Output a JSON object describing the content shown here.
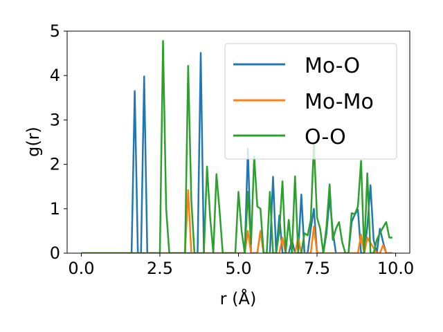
{
  "chart_data": {
    "type": "line",
    "xlabel": "r (Å)",
    "ylabel": "g(r)",
    "xlim": [
      -0.45,
      10.45
    ],
    "ylim": [
      0,
      5
    ],
    "xticks": [
      "0.0",
      "2.5",
      "5.0",
      "7.5",
      "10.0"
    ],
    "yticks": [
      "0",
      "1",
      "2",
      "3",
      "4",
      "5"
    ],
    "grid": false,
    "legend_position": "upper right",
    "series": [
      {
        "name": "Mo-O",
        "color": "#1f77b4",
        "x": [
          0.0,
          1.6,
          1.7,
          1.8,
          1.9,
          2.0,
          2.1,
          2.2,
          3.5,
          3.6,
          3.7,
          3.8,
          3.9,
          4.0,
          5.2,
          5.3,
          5.4,
          5.5,
          5.6,
          5.7,
          5.8,
          5.9,
          6.0,
          6.1,
          6.2,
          6.3,
          6.4,
          6.5,
          6.6,
          6.7,
          6.8,
          6.9,
          7.0,
          7.1,
          7.2,
          7.3,
          7.4,
          7.5,
          7.6,
          7.7,
          7.8,
          7.9,
          8.0,
          8.1,
          8.2,
          8.3,
          8.4,
          8.5,
          8.6,
          8.7,
          8.8,
          8.9,
          9.0,
          9.1,
          9.2,
          9.3,
          9.4,
          9.5,
          9.6,
          9.7,
          9.8,
          9.9
        ],
        "values": [
          0,
          0,
          3.65,
          0,
          0,
          3.98,
          0,
          0,
          0,
          0,
          0,
          4.51,
          0,
          0,
          0,
          2.35,
          0,
          0,
          0,
          0.5,
          0,
          0,
          0,
          1.72,
          0,
          0.85,
          0,
          0,
          0,
          0.3,
          0,
          0,
          1.32,
          0,
          0,
          0.55,
          1.0,
          0,
          0,
          0,
          0.45,
          1.25,
          0.5,
          0,
          0,
          0,
          0,
          0,
          0.7,
          0.87,
          0.98,
          0,
          0,
          0.6,
          1.53,
          0.3,
          0,
          0.55,
          0.25,
          0,
          0,
          0
        ]
      },
      {
        "name": "Mo-Mo",
        "color": "#ff7f0e",
        "x": [
          0.0,
          3.3,
          3.4,
          3.5,
          5.2,
          5.3,
          5.4,
          5.5,
          5.6,
          5.7,
          5.8,
          6.3,
          6.4,
          6.5,
          6.8,
          6.9,
          7.0,
          7.3,
          7.4,
          7.5,
          7.6,
          8.8,
          8.9,
          9.0,
          9.1,
          9.4,
          9.5,
          9.6,
          9.7,
          9.9
        ],
        "values": [
          0,
          0,
          1.42,
          0,
          0,
          0.5,
          0,
          0,
          0,
          0.5,
          0,
          0,
          0.35,
          0,
          0,
          0.35,
          0,
          0,
          0.6,
          0,
          0,
          0,
          0.42,
          0,
          0.35,
          0,
          0,
          0.18,
          0,
          0
        ]
      },
      {
        "name": "O-O",
        "color": "#2ca02c",
        "x": [
          0.0,
          2.5,
          2.6,
          2.7,
          2.8,
          3.3,
          3.4,
          3.5,
          3.6,
          3.9,
          4.0,
          4.1,
          4.2,
          4.3,
          4.4,
          4.5,
          4.9,
          5.0,
          5.1,
          5.2,
          5.3,
          5.4,
          5.5,
          5.6,
          5.7,
          5.8,
          5.9,
          6.0,
          6.1,
          6.2,
          6.3,
          6.4,
          6.5,
          6.6,
          6.7,
          6.8,
          6.9,
          7.0,
          7.1,
          7.2,
          7.3,
          7.4,
          7.5,
          7.6,
          7.7,
          7.8,
          7.9,
          8.0,
          8.1,
          8.2,
          8.3,
          8.4,
          8.5,
          8.6,
          8.7,
          8.8,
          8.9,
          9.0,
          9.1,
          9.2,
          9.3,
          9.4,
          9.5,
          9.6,
          9.7,
          9.8,
          9.9
        ],
        "values": [
          0,
          0,
          4.78,
          1.0,
          0,
          0,
          4.22,
          1.2,
          0,
          0,
          1.95,
          0.8,
          0,
          1.78,
          0.95,
          0,
          0,
          1.38,
          0.5,
          0,
          1.38,
          0.2,
          2.18,
          1.05,
          1.0,
          0,
          0,
          1.38,
          0,
          0,
          0.5,
          1.62,
          0,
          0.75,
          0,
          1.73,
          0,
          0,
          0.45,
          0.4,
          0.75,
          2.48,
          0.8,
          0.55,
          0,
          0.6,
          1.55,
          0.3,
          0.55,
          0.7,
          0.25,
          0,
          0,
          0.9,
          0.88,
          1.05,
          2.08,
          0,
          1.8,
          0,
          0,
          0.3,
          0.45,
          0.58,
          0.7,
          0.35,
          0.35
        ]
      }
    ]
  }
}
